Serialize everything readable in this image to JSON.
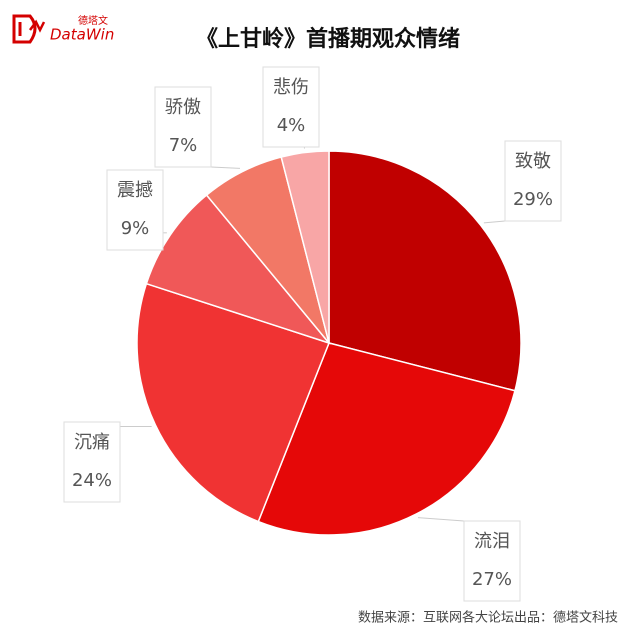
{
  "logo": {
    "name": "DataWin",
    "subtitle": "德塔文"
  },
  "chart_data": {
    "type": "pie",
    "title": "《上甘岭》首播期观众情绪",
    "categories": [
      "致敬",
      "流泪",
      "沉痛",
      "震撼",
      "骄傲",
      "悲伤"
    ],
    "values": [
      29,
      27,
      24,
      9,
      7,
      4
    ],
    "value_labels": [
      "29%",
      "27%",
      "24%",
      "9%",
      "7%",
      "4%"
    ],
    "colors": [
      "#c00000",
      "#e50808",
      "#f03333",
      "#f05858",
      "#f27866",
      "#f8a6a6"
    ]
  },
  "footer": {
    "source": "数据来源：互联网各大论坛",
    "producer": "出品：德塔文科技"
  }
}
